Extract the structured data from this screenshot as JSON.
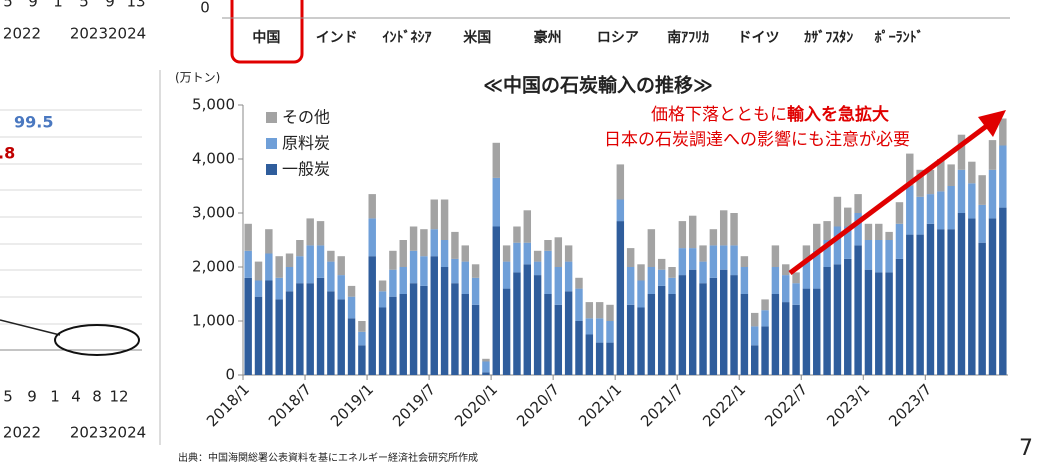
{
  "left_fragment": {
    "top_axis_labels": [
      "5",
      "9",
      "1",
      "5",
      "9",
      "13"
    ],
    "top_year_labels": [
      "2022",
      "20232024"
    ],
    "blue_label": "99.5",
    "red_label": ".8",
    "bottom_axis_labels": [
      "5",
      "9",
      "1",
      "4",
      "8",
      "12"
    ],
    "bottom_year_labels": [
      "2022",
      "20232024"
    ]
  },
  "chart_data": [
    {
      "type": "bar",
      "categories": [
        "中国",
        "インド",
        "ｲﾝﾄﾞﾈｼｱ",
        "米国",
        "豪州",
        "ロシア",
        "南ｱﾌﾘｶ",
        "ドイツ",
        "ｶｻﾞﾌｽﾀﾝ",
        "ﾎﾟｰﾗﾝﾄﾞ"
      ],
      "yticks": [
        0
      ]
    },
    {
      "type": "stacked_bar",
      "title": "≪中国の石炭輸入の推移≫",
      "unit_label": "(万トン)",
      "annotation": [
        "価格下落とともに",
        "輸入を急拡大"
      ],
      "annotation2": "日本の石炭調達への影響にも注意が必要",
      "categories": [
        "2018/1",
        null,
        null,
        null,
        null,
        null,
        "2018/7",
        null,
        null,
        null,
        null,
        null,
        "2019/1",
        null,
        null,
        null,
        null,
        null,
        "2019/7",
        null,
        null,
        null,
        null,
        null,
        "2020/1",
        null,
        null,
        null,
        null,
        null,
        "2020/7",
        null,
        null,
        null,
        null,
        null,
        "2021/1",
        null,
        null,
        null,
        null,
        null,
        "2021/7",
        null,
        null,
        null,
        null,
        null,
        "2022/1",
        null,
        null,
        null,
        null,
        null,
        "2022/7",
        null,
        null,
        null,
        null,
        null,
        "2023/1",
        null,
        null,
        null,
        null,
        null,
        "2023/7",
        null,
        null,
        null,
        null,
        null,
        null,
        null
      ],
      "series": [
        {
          "name": "一般炭",
          "color": "#2f5d9c",
          "values": [
            1800,
            1450,
            1750,
            1400,
            1550,
            1700,
            1700,
            1800,
            1550,
            1400,
            1050,
            550,
            2200,
            1250,
            1450,
            1500,
            1700,
            1650,
            2200,
            2000,
            1700,
            1500,
            1300,
            50,
            2750,
            1600,
            1900,
            2050,
            1850,
            1500,
            1300,
            1550,
            1000,
            750,
            600,
            600,
            2850,
            1300,
            1250,
            1500,
            1650,
            1500,
            1850,
            1950,
            1700,
            1800,
            1950,
            1850,
            1500,
            550,
            900,
            1500,
            1350,
            1300,
            1600,
            1600,
            2000,
            2050,
            2150,
            2400,
            1950,
            1900,
            1900,
            2150,
            2600,
            2600,
            2800,
            2700,
            2700,
            3000,
            2900,
            2450,
            2900,
            3100
          ]
        },
        {
          "name": "原料炭",
          "color": "#6f9fd8",
          "values": [
            500,
            300,
            500,
            400,
            450,
            500,
            700,
            600,
            550,
            450,
            400,
            250,
            700,
            300,
            500,
            500,
            600,
            550,
            500,
            500,
            450,
            600,
            500,
            200,
            900,
            500,
            550,
            400,
            250,
            800,
            700,
            550,
            600,
            300,
            450,
            400,
            400,
            700,
            500,
            500,
            300,
            300,
            500,
            400,
            400,
            600,
            450,
            550,
            500,
            350,
            300,
            500,
            500,
            400,
            500,
            700,
            500,
            700,
            600,
            600,
            550,
            600,
            600,
            650,
            900,
            700,
            550,
            700,
            800,
            800,
            650,
            700,
            900,
            1150
          ]
        },
        {
          "name": "その他",
          "color": "#a3a3a3",
          "values": [
            500,
            350,
            450,
            400,
            250,
            300,
            500,
            450,
            200,
            350,
            200,
            200,
            450,
            200,
            350,
            500,
            450,
            500,
            550,
            750,
            500,
            300,
            250,
            50,
            650,
            300,
            300,
            600,
            200,
            200,
            550,
            300,
            200,
            300,
            300,
            300,
            650,
            350,
            300,
            700,
            200,
            200,
            500,
            600,
            300,
            300,
            650,
            600,
            200,
            250,
            200,
            400,
            200,
            200,
            300,
            500,
            350,
            550,
            350,
            350,
            300,
            300,
            150,
            400,
            600,
            500,
            450,
            600,
            400,
            650,
            400,
            550,
            550,
            500
          ]
        }
      ],
      "ylim": [
        0,
        5000
      ],
      "yticks": [
        0,
        {
          "value": 1000,
          "label": "1,000"
        },
        {
          "value": 2000,
          "label": "2,000"
        },
        {
          "value": 3000,
          "label": "3,000"
        },
        {
          "value": 4000,
          "label": "4,000"
        },
        {
          "value": 5000,
          "label": "5,000"
        }
      ],
      "legend": "top-left"
    }
  ],
  "source": "出典：中国海関総署公表資料を基にエネルギー経済社会研究所作成",
  "page_number": "7"
}
